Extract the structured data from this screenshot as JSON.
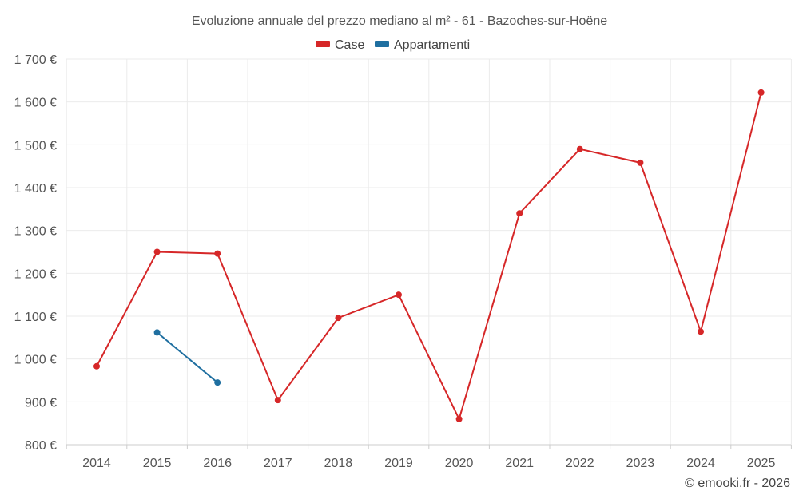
{
  "chart_data": {
    "type": "line",
    "title": "Evoluzione annuale del prezzo mediano al m² - 61 - Bazoches-sur-Hoëne",
    "categories": [
      "2014",
      "2015",
      "2016",
      "2017",
      "2018",
      "2019",
      "2020",
      "2021",
      "2022",
      "2023",
      "2024",
      "2025"
    ],
    "series": [
      {
        "name": "Case",
        "color": "#d62728",
        "values": [
          983,
          1250,
          1246,
          904,
          1096,
          1150,
          860,
          1340,
          1490,
          1458,
          1064,
          1622
        ]
      },
      {
        "name": "Appartamenti",
        "color": "#1f6fa0",
        "values": [
          null,
          1062,
          945,
          null,
          null,
          null,
          null,
          null,
          null,
          null,
          null,
          null
        ]
      }
    ],
    "ylim": [
      800,
      1700
    ],
    "yticks": [
      800,
      900,
      1000,
      1100,
      1200,
      1300,
      1400,
      1500,
      1600,
      1700
    ],
    "ytick_labels": [
      "800 €",
      "900 €",
      "1 000 €",
      "1 100 €",
      "1 200 €",
      "1 300 €",
      "1 400 €",
      "1 500 €",
      "1 600 €",
      "1 700 €"
    ],
    "grid": true,
    "legend_position": "top-center"
  },
  "credit": "© emooki.fr - 2026"
}
